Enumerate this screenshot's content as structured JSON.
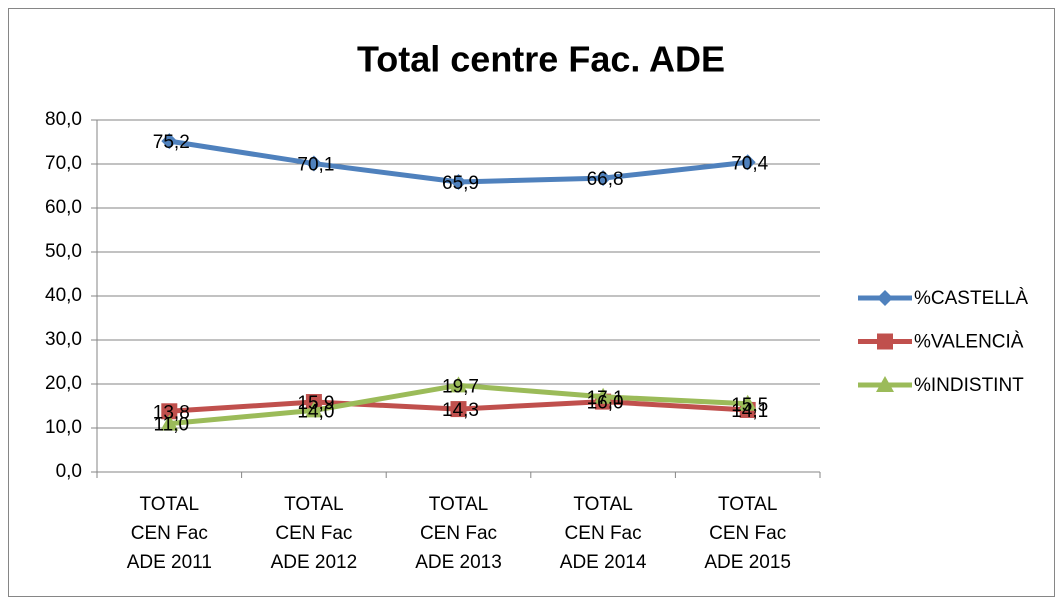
{
  "chart_data": {
    "type": "line",
    "title": "Total centre Fac. ADE",
    "categories": [
      "TOTAL CEN Fac ADE 2011",
      "TOTAL CEN Fac ADE 2012",
      "TOTAL CEN Fac ADE 2013",
      "TOTAL CEN Fac ADE 2014",
      "TOTAL CEN Fac ADE 2015"
    ],
    "series": [
      {
        "name": "%CASTELLÀ",
        "color": "#4f81bd",
        "marker": "diamond",
        "values": [
          75.2,
          70.1,
          65.9,
          66.8,
          70.4
        ],
        "value_labels": [
          "75,2",
          "70,1",
          "65,9",
          "66,8",
          "70,4"
        ]
      },
      {
        "name": "%VALENCIÀ",
        "color": "#c0504d",
        "marker": "square",
        "values": [
          13.8,
          15.9,
          14.3,
          16.0,
          14.1
        ],
        "value_labels": [
          "13,8",
          "15,9",
          "14,3",
          "16,0",
          "14,1"
        ]
      },
      {
        "name": "%INDISTINT",
        "color": "#9bbb59",
        "marker": "triangle",
        "values": [
          11.0,
          14.0,
          19.7,
          17.1,
          15.5
        ],
        "value_labels": [
          "11,0",
          "14,0",
          "19,7",
          "17,1",
          "15,5"
        ]
      }
    ],
    "ylim": [
      0,
      80
    ],
    "yticks": [
      {
        "value": 0,
        "label": "0,0"
      },
      {
        "value": 10,
        "label": "10,0"
      },
      {
        "value": 20,
        "label": "20,0"
      },
      {
        "value": 30,
        "label": "30,0"
      },
      {
        "value": 40,
        "label": "40,0"
      },
      {
        "value": 50,
        "label": "50,0"
      },
      {
        "value": 60,
        "label": "60,0"
      },
      {
        "value": 70,
        "label": "70,0"
      },
      {
        "value": 80,
        "label": "80,0"
      }
    ],
    "grid": true,
    "legend": "right"
  }
}
